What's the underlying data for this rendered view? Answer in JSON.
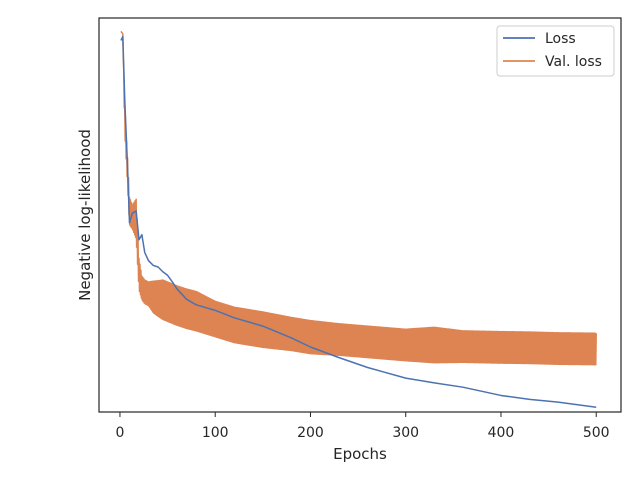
{
  "chart_data": {
    "type": "line",
    "title": "",
    "xlabel": "Epochs",
    "ylabel": "Negative log-likelihood",
    "xlim": [
      -22,
      526
    ],
    "ylim": [
      0,
      1
    ],
    "y_tick_labels_shown": false,
    "xticks": [
      0,
      100,
      200,
      300,
      400,
      500
    ],
    "grid": false,
    "legend_position": "top-right",
    "series": [
      {
        "name": "Loss",
        "color": "#4c72b0",
        "x": [
          1,
          3,
          5,
          8,
          10,
          13,
          17,
          20,
          23,
          26,
          30,
          35,
          40,
          45,
          50,
          55,
          60,
          70,
          80,
          100,
          120,
          150,
          180,
          200,
          230,
          260,
          300,
          330,
          360,
          400,
          430,
          460,
          500
        ],
        "y": [
          0.943,
          0.953,
          0.795,
          0.62,
          0.48,
          0.505,
          0.51,
          0.437,
          0.45,
          0.405,
          0.384,
          0.372,
          0.368,
          0.356,
          0.347,
          0.33,
          0.312,
          0.286,
          0.272,
          0.258,
          0.239,
          0.218,
          0.188,
          0.165,
          0.138,
          0.113,
          0.086,
          0.074,
          0.063,
          0.042,
          0.032,
          0.025,
          0.012
        ]
      },
      {
        "name": "Val. loss",
        "color": "#dd8452",
        "x": [
          1,
          3,
          5,
          8,
          10,
          13,
          17,
          20,
          23,
          26,
          30,
          35,
          40,
          45,
          50,
          55,
          60,
          70,
          80,
          100,
          120,
          150,
          180,
          200,
          230,
          260,
          300,
          330,
          360,
          400,
          430,
          460,
          500
        ],
        "y": [
          0.966,
          0.96,
          0.74,
          0.61,
          0.51,
          0.495,
          0.49,
          0.35,
          0.315,
          0.305,
          0.3,
          0.292,
          0.288,
          0.285,
          0.28,
          0.275,
          0.27,
          0.262,
          0.256,
          0.236,
          0.221,
          0.209,
          0.198,
          0.19,
          0.184,
          0.178,
          0.17,
          0.17,
          0.166,
          0.164,
          0.163,
          0.161,
          0.16
        ],
        "oscillation_amplitude": [
          0.0,
          0.0,
          0.03,
          0.035,
          0.035,
          0.03,
          0.05,
          0.04,
          0.03,
          0.03,
          0.03,
          0.04,
          0.045,
          0.05,
          0.05,
          0.05,
          0.05,
          0.05,
          0.05,
          0.045,
          0.045,
          0.045,
          0.042,
          0.042,
          0.04,
          0.04,
          0.04,
          0.045,
          0.04,
          0.04,
          0.04,
          0.04,
          0.04
        ]
      }
    ]
  }
}
